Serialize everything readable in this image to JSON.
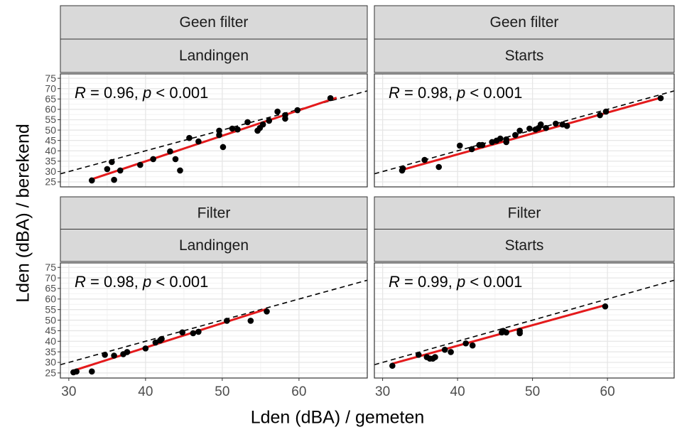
{
  "xlabel": "Lden (dBA) / gemeten",
  "ylabel": "Lden (dBA) / berekend",
  "chart_data": [
    {
      "type": "scatter",
      "strips": [
        "Geen filter",
        "Landingen"
      ],
      "annotation": [
        {
          "text": "R",
          "italic": true
        },
        {
          "text": " = 0.96, ",
          "italic": false
        },
        {
          "text": "p",
          "italic": true
        },
        {
          "text": " < 0.001",
          "italic": false
        }
      ],
      "x": [
        33,
        35,
        35.6,
        35.9,
        36.7,
        39.3,
        41,
        43.2,
        43.9,
        44.5,
        45.7,
        46.9,
        49.6,
        49.6,
        50.1,
        51.3,
        52,
        53.3,
        54.6,
        54.9,
        55.3,
        56.1,
        57.2,
        58.2,
        58.2,
        59.8,
        64.1
      ],
      "values": [
        25.7,
        31.2,
        34.6,
        26,
        30.5,
        33.2,
        36,
        39.7,
        36,
        30.5,
        46.2,
        44.5,
        49.7,
        47.6,
        41.8,
        50.7,
        50.3,
        53.8,
        49.7,
        51,
        52.7,
        54.5,
        58.9,
        57.2,
        55.5,
        59.6,
        65.4
      ],
      "fit": {
        "x": [
          33,
          64.9
        ],
        "y": [
          26.3,
          65.6
        ]
      },
      "reference_line": {
        "slope": 1,
        "intercept": 0
      },
      "xlim": [
        28.9,
        68.9
      ],
      "ylim": [
        22.6,
        77.1
      ],
      "xticks": [
        30,
        40,
        50,
        60
      ],
      "yticks": [
        25,
        30,
        35,
        40,
        45,
        50,
        55,
        60,
        65,
        70,
        75
      ],
      "grid": true,
      "minor_grid": true,
      "color": "#000000",
      "fit_color": "#e41a1c"
    },
    {
      "type": "scatter",
      "strips": [
        "Geen filter",
        "Starts"
      ],
      "annotation": [
        {
          "text": "R",
          "italic": true
        },
        {
          "text": " = 0.98, ",
          "italic": false
        },
        {
          "text": "p",
          "italic": true
        },
        {
          "text": " < 0.001",
          "italic": false
        }
      ],
      "x": [
        32.6,
        32.7,
        35.6,
        37.5,
        40.3,
        41.9,
        42.9,
        43.3,
        44.6,
        45.2,
        45.7,
        46.5,
        46.5,
        47.7,
        48.3,
        49.6,
        50.4,
        50.8,
        51.1,
        51.8,
        53.1,
        54,
        54.6,
        59,
        59.8,
        67.1
      ],
      "values": [
        30.5,
        31.5,
        35.6,
        32.2,
        42.5,
        40.8,
        42.8,
        42.8,
        44.2,
        44.9,
        45.9,
        44.2,
        45.5,
        47.6,
        49.7,
        50.7,
        50.3,
        51,
        52.7,
        51,
        53.1,
        52.7,
        52,
        57.2,
        58.9,
        65.4
      ],
      "fit": {
        "x": [
          32.6,
          67.1
        ],
        "y": [
          30.8,
          65.6
        ]
      },
      "reference_line": {
        "slope": 1,
        "intercept": 0
      },
      "xlim": [
        28.9,
        68.9
      ],
      "ylim": [
        22.6,
        77.1
      ],
      "xticks": [
        30,
        40,
        50,
        60
      ],
      "yticks": [
        25,
        30,
        35,
        40,
        45,
        50,
        55,
        60,
        65,
        70,
        75
      ],
      "grid": true,
      "minor_grid": true,
      "color": "#000000",
      "fit_color": "#e41a1c"
    },
    {
      "type": "scatter",
      "strips": [
        "Filter",
        "Landingen"
      ],
      "annotation": [
        {
          "text": "R",
          "italic": true
        },
        {
          "text": " = 0.98, ",
          "italic": false
        },
        {
          "text": "p",
          "italic": true
        },
        {
          "text": " < 0.001",
          "italic": false
        }
      ],
      "x": [
        30.6,
        31,
        33,
        34.7,
        35.9,
        37.1,
        37.6,
        40,
        41.3,
        41.9,
        42.1,
        44.8,
        46.2,
        46.9,
        50.6,
        53.7,
        55.8
      ],
      "values": [
        25.3,
        25.7,
        25.7,
        33.6,
        33.2,
        33.9,
        34.9,
        36.6,
        39.4,
        40.4,
        41.1,
        44.2,
        43.8,
        44.5,
        49.7,
        49.7,
        54.1
      ],
      "fit": {
        "x": [
          30.6,
          55.8
        ],
        "y": [
          26.1,
          55.3
        ]
      },
      "reference_line": {
        "slope": 1,
        "intercept": 0
      },
      "xlim": [
        28.9,
        68.9
      ],
      "ylim": [
        22.6,
        77.1
      ],
      "xticks": [
        30,
        40,
        50,
        60
      ],
      "yticks": [
        25,
        30,
        35,
        40,
        45,
        50,
        55,
        60,
        65,
        70,
        75
      ],
      "grid": true,
      "minor_grid": true,
      "color": "#000000",
      "fit_color": "#e41a1c"
    },
    {
      "type": "scatter",
      "strips": [
        "Filter",
        "Starts"
      ],
      "annotation": [
        {
          "text": "R",
          "italic": true
        },
        {
          "text": " = 0.99, ",
          "italic": false
        },
        {
          "text": "p",
          "italic": true
        },
        {
          "text": " < 0.001",
          "italic": false
        }
      ],
      "x": [
        31.3,
        34.8,
        35.9,
        36.3,
        36.7,
        37,
        38.3,
        39.1,
        41.1,
        42,
        45.9,
        46.1,
        46.5,
        48.3,
        48.3,
        59.7
      ],
      "values": [
        28.4,
        33.6,
        32.5,
        31.8,
        31.8,
        32.5,
        36,
        34.9,
        39,
        38,
        44.2,
        44.9,
        44.2,
        44.9,
        43.8,
        56.5
      ],
      "fit": {
        "x": [
          31.3,
          59.7
        ],
        "y": [
          29.4,
          57.1
        ]
      },
      "reference_line": {
        "slope": 1,
        "intercept": 0
      },
      "xlim": [
        28.9,
        68.9
      ],
      "ylim": [
        22.6,
        77.1
      ],
      "xticks": [
        30,
        40,
        50,
        60
      ],
      "yticks": [
        25,
        30,
        35,
        40,
        45,
        50,
        55,
        60,
        65,
        70,
        75
      ],
      "grid": true,
      "minor_grid": true,
      "color": "#000000",
      "fit_color": "#e41a1c"
    }
  ]
}
